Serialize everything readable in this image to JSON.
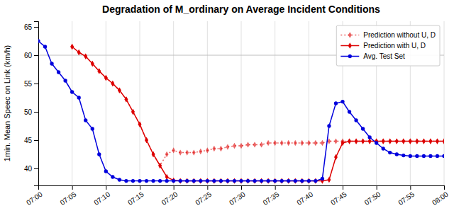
{
  "chart_data": {
    "type": "line",
    "title": "Degradation of M_ordinary on Average Incident Conditions",
    "ylabel": "1min. Mean Speec on Link (km/h)",
    "x": [
      0,
      1,
      2,
      3,
      4,
      5,
      6,
      7,
      8,
      9,
      10,
      11,
      12,
      13,
      14,
      15,
      16,
      17,
      18,
      19,
      20,
      21,
      22,
      23,
      24,
      25,
      26,
      27,
      28,
      29,
      30,
      31,
      32,
      33,
      34,
      35,
      36,
      37,
      38,
      39,
      40,
      41,
      42,
      43,
      44,
      45,
      46,
      47,
      48,
      49,
      50,
      51,
      52,
      53,
      54,
      55,
      56,
      57,
      58,
      59,
      60
    ],
    "xlim": [
      0,
      60
    ],
    "xticks": [
      {
        "value": 0,
        "label": "07:00"
      },
      {
        "value": 5,
        "label": "07:05"
      },
      {
        "value": 10,
        "label": "07:10"
      },
      {
        "value": 15,
        "label": "07:15"
      },
      {
        "value": 20,
        "label": "07:20"
      },
      {
        "value": 25,
        "label": "07:25"
      },
      {
        "value": 30,
        "label": "07:30"
      },
      {
        "value": 35,
        "label": "07:35"
      },
      {
        "value": 40,
        "label": "07:40"
      },
      {
        "value": 45,
        "label": "07:45"
      },
      {
        "value": 50,
        "label": "07:50"
      },
      {
        "value": 55,
        "label": "07:55"
      },
      {
        "value": 60,
        "label": "08:00"
      }
    ],
    "ylim": [
      37,
      66
    ],
    "yticks": [
      40,
      45,
      50,
      55,
      60,
      65
    ],
    "grid": "x",
    "hline": 60,
    "legend": "upper right",
    "series": [
      {
        "name": "Prediction without U, D",
        "color": "#dd0000",
        "marker": "diamond",
        "line_style": "dotted",
        "values": [
          null,
          null,
          null,
          null,
          null,
          61.5,
          60.5,
          59.8,
          58.5,
          57.2,
          56.0,
          55.0,
          53.8,
          52.2,
          50.0,
          47.8,
          45.0,
          42.5,
          40.5,
          42.5,
          43.2,
          42.8,
          42.8,
          42.8,
          43.0,
          43.2,
          43.5,
          43.5,
          43.8,
          44.0,
          44.0,
          44.2,
          44.2,
          44.2,
          44.5,
          44.5,
          44.5,
          44.5,
          44.5,
          44.5,
          44.5,
          44.5,
          44.5,
          44.8,
          44.8,
          44.8,
          44.8,
          44.8,
          44.8,
          44.8,
          44.8,
          44.8,
          44.8,
          44.8,
          44.8,
          44.8,
          44.8,
          44.8,
          44.8,
          44.8,
          44.8
        ]
      },
      {
        "name": "Prediction with U, D",
        "color": "#dd0000",
        "marker": "diamond",
        "line_style": "solid",
        "values": [
          null,
          null,
          null,
          null,
          null,
          61.5,
          60.5,
          59.8,
          58.5,
          57.2,
          56.0,
          55.0,
          53.8,
          52.2,
          50.0,
          47.8,
          45.0,
          42.5,
          40.5,
          38.5,
          37.9,
          37.8,
          37.8,
          37.8,
          37.8,
          37.8,
          37.8,
          37.8,
          37.8,
          37.8,
          37.8,
          37.8,
          37.8,
          37.8,
          37.8,
          37.8,
          37.8,
          37.8,
          37.8,
          37.8,
          37.8,
          37.8,
          37.8,
          38.0,
          42.0,
          44.5,
          44.8,
          44.8,
          44.8,
          44.8,
          44.8,
          44.8,
          44.8,
          44.8,
          44.8,
          44.8,
          44.8,
          44.8,
          44.8,
          44.8,
          44.8
        ]
      },
      {
        "name": "Avg. Test Set",
        "color": "#0000dd",
        "marker": "circle",
        "line_style": "solid",
        "values": [
          62.5,
          61.5,
          58.5,
          57.0,
          55.5,
          53.5,
          52.5,
          48.5,
          47.0,
          42.5,
          39.5,
          38.5,
          38.0,
          37.8,
          37.8,
          37.8,
          37.8,
          37.8,
          37.8,
          37.8,
          37.8,
          37.8,
          37.8,
          37.8,
          37.8,
          37.8,
          37.8,
          37.8,
          37.8,
          37.8,
          37.8,
          37.8,
          37.8,
          37.8,
          37.8,
          37.8,
          37.8,
          37.8,
          37.8,
          37.8,
          37.8,
          37.8,
          38.2,
          47.5,
          51.5,
          51.8,
          50.0,
          48.5,
          47.0,
          45.5,
          44.5,
          43.5,
          42.8,
          42.5,
          42.3,
          42.2,
          42.2,
          42.2,
          42.2,
          42.2,
          42.2
        ]
      }
    ]
  }
}
